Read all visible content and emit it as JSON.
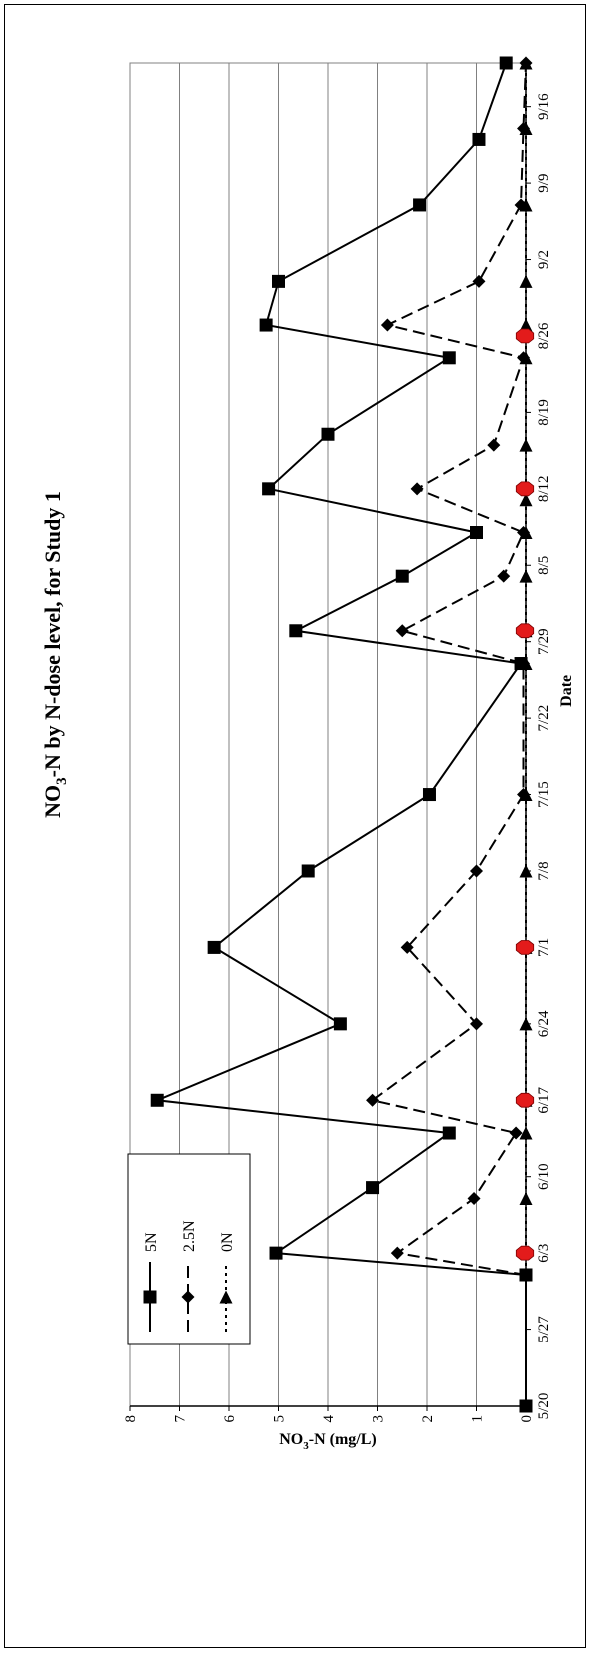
{
  "chart_data": {
    "type": "line",
    "title_main": "NO",
    "title_sub": "3",
    "title_rest": "-N by N-dose level, for Study 1",
    "ylabel_main": "NO",
    "ylabel_sub": "3",
    "ylabel_rest": "-N (mg/L)",
    "xlabel": "Date",
    "ylim": [
      0,
      8
    ],
    "yticks": [
      "0",
      "1",
      "2",
      "3",
      "4",
      "5",
      "6",
      "7",
      "8"
    ],
    "xlim": [
      0,
      123
    ],
    "date_ticks": [
      {
        "label": "5/20",
        "day": 0
      },
      {
        "label": "5/27",
        "day": 7
      },
      {
        "label": "6/3",
        "day": 14
      },
      {
        "label": "6/10",
        "day": 21
      },
      {
        "label": "6/17",
        "day": 28
      },
      {
        "label": "6/24",
        "day": 35
      },
      {
        "label": "7/1",
        "day": 42
      },
      {
        "label": "7/8",
        "day": 49
      },
      {
        "label": "7/15",
        "day": 56
      },
      {
        "label": "7/22",
        "day": 63
      },
      {
        "label": "7/29",
        "day": 70
      },
      {
        "label": "8/5",
        "day": 77
      },
      {
        "label": "8/12",
        "day": 84
      },
      {
        "label": "8/19",
        "day": 91
      },
      {
        "label": "8/26",
        "day": 98
      },
      {
        "label": "9/2",
        "day": 105
      },
      {
        "label": "9/9",
        "day": 112
      },
      {
        "label": "9/16",
        "day": 119
      }
    ],
    "grid": true,
    "legend_position": "lower-right",
    "series": [
      {
        "name": "0N",
        "marker": "triangle",
        "dash": "dotted",
        "points": [
          {
            "x": 0,
            "y": 0
          },
          {
            "x": 12,
            "y": 0
          },
          {
            "x": 19,
            "y": 0
          },
          {
            "x": 25,
            "y": 0
          },
          {
            "x": 28,
            "y": 0
          },
          {
            "x": 35,
            "y": 0
          },
          {
            "x": 42,
            "y": 0
          },
          {
            "x": 49,
            "y": 0
          },
          {
            "x": 56,
            "y": 0
          },
          {
            "x": 68,
            "y": 0
          },
          {
            "x": 71,
            "y": 0
          },
          {
            "x": 76,
            "y": 0
          },
          {
            "x": 80,
            "y": 0
          },
          {
            "x": 83,
            "y": 0
          },
          {
            "x": 88,
            "y": 0
          },
          {
            "x": 96,
            "y": 0
          },
          {
            "x": 99,
            "y": 0
          },
          {
            "x": 103,
            "y": 0
          },
          {
            "x": 110,
            "y": 0
          },
          {
            "x": 117,
            "y": 0
          },
          {
            "x": 123,
            "y": 0
          }
        ]
      },
      {
        "name": "2.5N",
        "marker": "diamond",
        "dash": "dashed",
        "points": [
          {
            "x": 12,
            "y": 0
          },
          {
            "x": 14,
            "y": 2.6
          },
          {
            "x": 19,
            "y": 1.05
          },
          {
            "x": 25,
            "y": 0.2
          },
          {
            "x": 28,
            "y": 3.1
          },
          {
            "x": 35,
            "y": 1.0
          },
          {
            "x": 42,
            "y": 2.4
          },
          {
            "x": 49,
            "y": 1.0
          },
          {
            "x": 56,
            "y": 0.05
          },
          {
            "x": 68,
            "y": 0.05
          },
          {
            "x": 71,
            "y": 2.5
          },
          {
            "x": 76,
            "y": 0.45
          },
          {
            "x": 80,
            "y": 0.05
          },
          {
            "x": 84,
            "y": 2.2
          },
          {
            "x": 88,
            "y": 0.65
          },
          {
            "x": 96,
            "y": 0.05
          },
          {
            "x": 99,
            "y": 2.8
          },
          {
            "x": 103,
            "y": 0.95
          },
          {
            "x": 110,
            "y": 0.1
          },
          {
            "x": 117,
            "y": 0.05
          },
          {
            "x": 123,
            "y": 0
          }
        ]
      },
      {
        "name": "5N",
        "marker": "square",
        "dash": "solid",
        "points": [
          {
            "x": 0,
            "y": 0
          },
          {
            "x": 12,
            "y": 0
          },
          {
            "x": 14,
            "y": 5.05
          },
          {
            "x": 20,
            "y": 3.1
          },
          {
            "x": 25,
            "y": 1.55
          },
          {
            "x": 28,
            "y": 7.45
          },
          {
            "x": 35,
            "y": 3.75
          },
          {
            "x": 42,
            "y": 6.3
          },
          {
            "x": 49,
            "y": 4.4
          },
          {
            "x": 56,
            "y": 1.95
          },
          {
            "x": 68,
            "y": 0.1
          },
          {
            "x": 71,
            "y": 4.65
          },
          {
            "x": 76,
            "y": 2.5
          },
          {
            "x": 80,
            "y": 1.0
          },
          {
            "x": 84,
            "y": 5.2
          },
          {
            "x": 89,
            "y": 4.0
          },
          {
            "x": 96,
            "y": 1.55
          },
          {
            "x": 99,
            "y": 5.25
          },
          {
            "x": 103,
            "y": 5.0
          },
          {
            "x": 110,
            "y": 2.15
          },
          {
            "x": 116,
            "y": 0.95
          },
          {
            "x": 123,
            "y": 0.4
          }
        ]
      }
    ],
    "extra_markers": {
      "name": "red-octagon",
      "color": "#e31b1b",
      "points": [
        {
          "x": 14,
          "y": 0
        },
        {
          "x": 28,
          "y": 0
        },
        {
          "x": 42,
          "y": 0
        },
        {
          "x": 71,
          "y": 0
        },
        {
          "x": 84,
          "y": 0
        },
        {
          "x": 98,
          "y": 0
        }
      ]
    }
  }
}
